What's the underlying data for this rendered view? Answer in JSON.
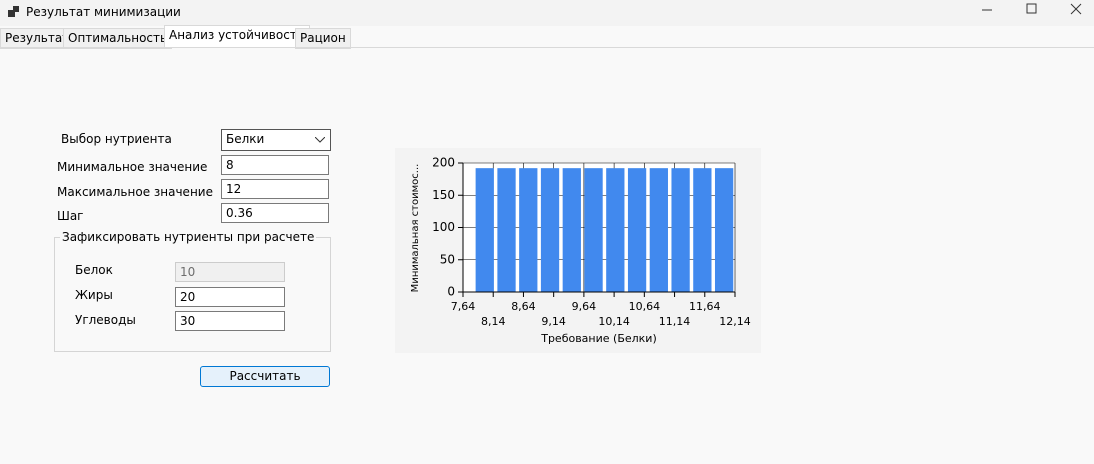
{
  "window": {
    "title": "Результат минимизации"
  },
  "tabs": [
    "Результат",
    "Оптимальность",
    "Анализ устойчивости",
    "Рацион"
  ],
  "form": {
    "nutrient_label": "Выбор нутриента",
    "nutrient_value": "Белки",
    "min_label": "Минимальное значение",
    "min_value": "8",
    "max_label": "Максимальное значение",
    "max_value": "12",
    "step_label": "Шаг",
    "step_value": "0.36",
    "group_title": "Зафиксировать нутриенты при расчете",
    "fixed": [
      {
        "label": "Белок",
        "value": "10"
      },
      {
        "label": "Жиры",
        "value": "20"
      },
      {
        "label": "Углеводы",
        "value": "30"
      }
    ],
    "button": "Рассчитать"
  },
  "chart_data": {
    "type": "bar",
    "x_label": "Требование (Белки)",
    "y_label": "Минимальная стоимос...",
    "x": [
      8,
      8.36,
      8.72,
      9.08,
      9.44,
      9.8,
      10.16,
      10.52,
      10.88,
      11.24,
      11.6,
      11.96
    ],
    "values": [
      192,
      192,
      192,
      192,
      192,
      192,
      192,
      192,
      192,
      192,
      192,
      192
    ],
    "color": "#4189ee",
    "xlim": [
      7.64,
      12.14
    ],
    "xticks": [
      {
        "value": 7.64,
        "label": "7,64"
      },
      {
        "value": 8.14,
        "label": "8,14"
      },
      {
        "value": 8.64,
        "label": "8,64"
      },
      {
        "value": 9.14,
        "label": "9,14"
      },
      {
        "value": 9.64,
        "label": "9,64"
      },
      {
        "value": 10.14,
        "label": "10,14"
      },
      {
        "value": 10.64,
        "label": "10,64"
      },
      {
        "value": 11.14,
        "label": "11,14"
      },
      {
        "value": 11.64,
        "label": "11,64"
      },
      {
        "value": 12.14,
        "label": "12,14"
      }
    ],
    "ylim": [
      0,
      200
    ],
    "yticks": [
      0,
      50,
      100,
      150,
      200
    ],
    "grid": true
  }
}
